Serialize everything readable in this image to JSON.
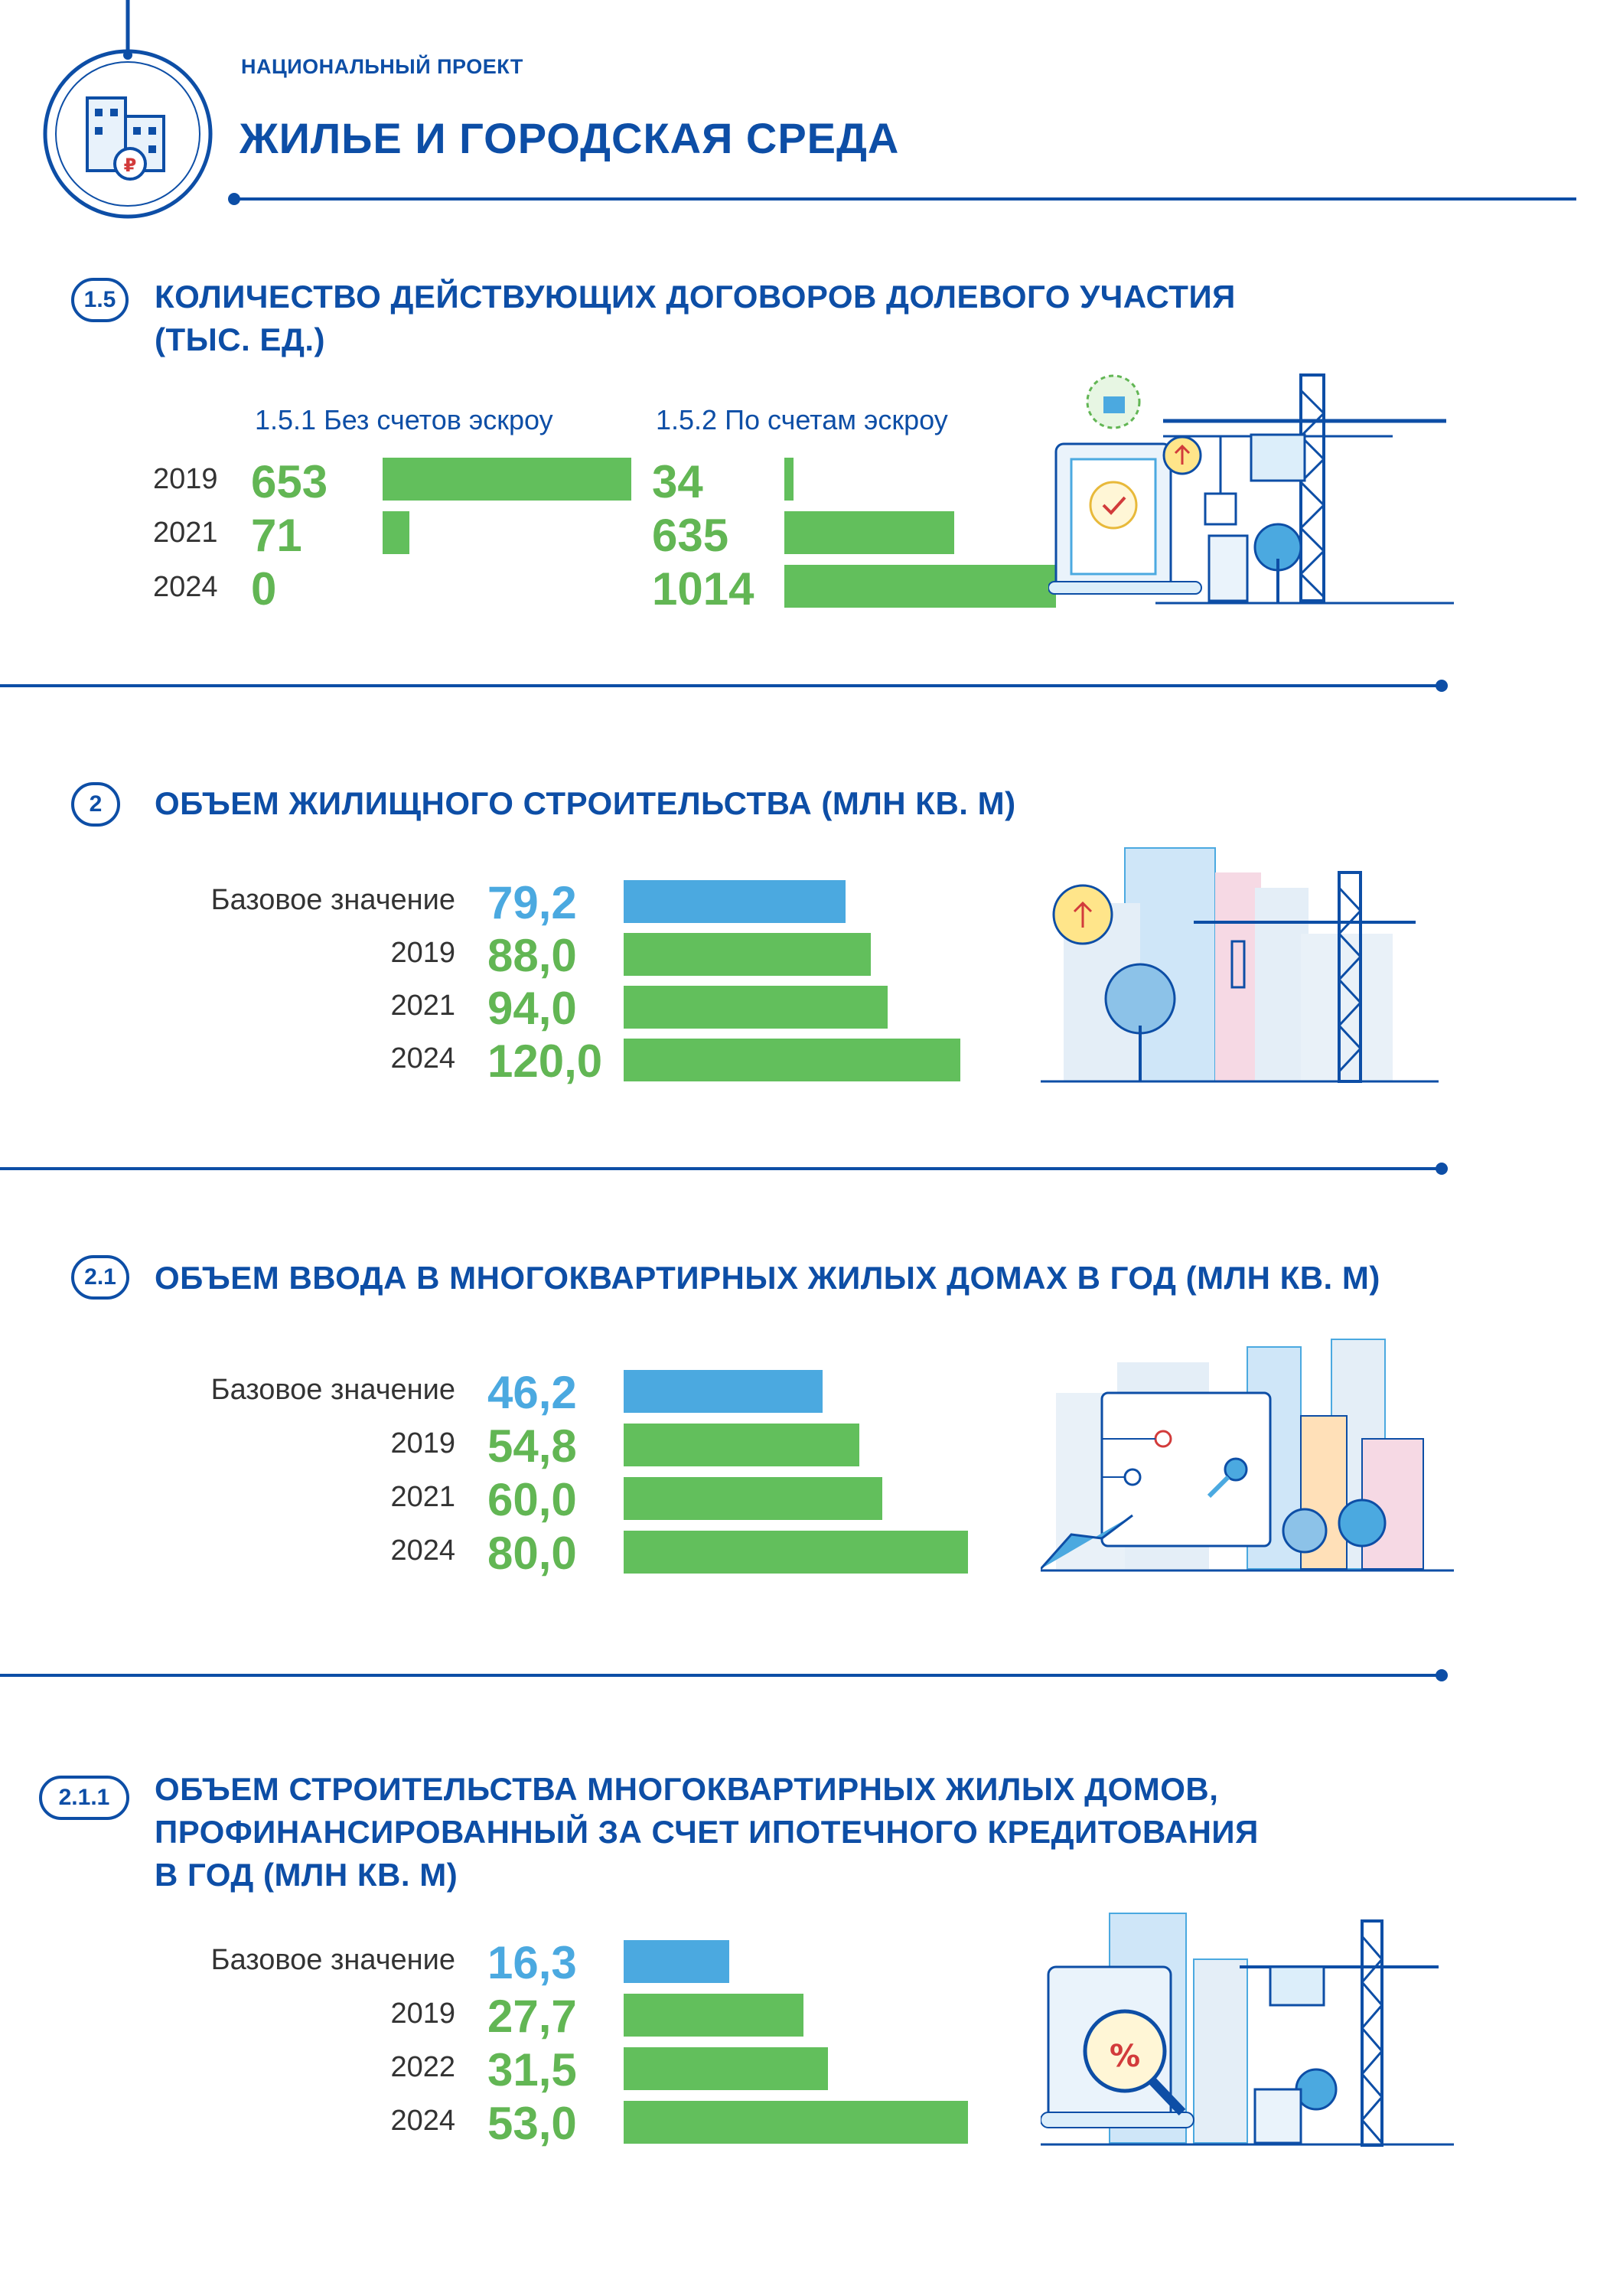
{
  "header": {
    "kicker": "НАЦИОНАЛЬНЫЙ ПРОЕКТ",
    "title": "ЖИЛЬЕ И ГОРОДСКАЯ СРЕДА",
    "icon": "house-ruble-icon"
  },
  "colors": {
    "brand": "#0d4ea6",
    "green_bar": "#62bf5c",
    "blue_bar": "#4ba9e0",
    "green_text": "#62b654"
  },
  "s15": {
    "badge": "1.5",
    "title_line1": "КОЛИЧЕСТВО ДЕЙСТВУЮЩИХ ДОГОВОРОВ ДОЛЕВОГО УЧАСТИЯ",
    "title_line2": "(ТЫС. ЕД.)",
    "col1": "1.5.1 Без счетов эскроу",
    "col2": "1.5.2 По счетам эскроу",
    "years": [
      "2019",
      "2021",
      "2024"
    ],
    "col1_values": [
      "653",
      "71",
      "0"
    ],
    "col2_values": [
      "34",
      "635",
      "1014"
    ]
  },
  "s2": {
    "badge": "2",
    "title": "ОБЪЕМ ЖИЛИЩНОГО СТРОИТЕЛЬСТВА (МЛН КВ. М)",
    "rows": [
      {
        "label": "Базовое значение",
        "value": "79,2"
      },
      {
        "label": "2019",
        "value": "88,0"
      },
      {
        "label": "2021",
        "value": "94,0"
      },
      {
        "label": "2024",
        "value": "120,0"
      }
    ]
  },
  "s21": {
    "badge": "2.1",
    "title": "ОБЪЕМ ВВОДА В МНОГОКВАРТИРНЫХ ЖИЛЫХ ДОМАХ В ГОД (МЛН КВ. М)",
    "rows": [
      {
        "label": "Базовое значение",
        "value": "46,2"
      },
      {
        "label": "2019",
        "value": "54,8"
      },
      {
        "label": "2021",
        "value": "60,0"
      },
      {
        "label": "2024",
        "value": "80,0"
      }
    ]
  },
  "s211": {
    "badge": "2.1.1",
    "title_line1": "ОБЪЕМ СТРОИТЕЛЬСТВА МНОГОКВАРТИРНЫХ ЖИЛЫХ ДОМОВ,",
    "title_line2": "ПРОФИНАНСИРОВАННЫЙ ЗА СЧЕТ ИПОТЕЧНОГО КРЕДИТОВАНИЯ",
    "title_line3": "В ГОД (МЛН КВ. М)",
    "rows": [
      {
        "label": "Базовое значение",
        "value": "16,3"
      },
      {
        "label": "2019",
        "value": "27,7"
      },
      {
        "label": "2022",
        "value": "31,5"
      },
      {
        "label": "2024",
        "value": "53,0"
      }
    ]
  },
  "chart_data": [
    {
      "type": "bar",
      "title": "КОЛИЧЕСТВО ДЕЙСТВУЮЩИХ ДОГОВОРОВ ДОЛЕВОГО УЧАСТИЯ (ТЫС. ЕД.)",
      "categories": [
        "2019",
        "2021",
        "2024"
      ],
      "series": [
        {
          "name": "1.5.1 Без счетов эскроу",
          "values": [
            653,
            71,
            0
          ]
        },
        {
          "name": "1.5.2 По счетам эскроу",
          "values": [
            34,
            635,
            1014
          ]
        }
      ]
    },
    {
      "type": "bar",
      "title": "ОБЪЕМ ЖИЛИЩНОГО СТРОИТЕЛЬСТВА (МЛН КВ. М)",
      "categories": [
        "Базовое значение",
        "2019",
        "2021",
        "2024"
      ],
      "values": [
        79.2,
        88.0,
        94.0,
        120.0
      ]
    },
    {
      "type": "bar",
      "title": "ОБЪЕМ ВВОДА В МНОГОКВАРТИРНЫХ ЖИЛЫХ ДОМАХ В ГОД (МЛН КВ. М)",
      "categories": [
        "Базовое значение",
        "2019",
        "2021",
        "2024"
      ],
      "values": [
        46.2,
        54.8,
        60.0,
        80.0
      ]
    },
    {
      "type": "bar",
      "title": "ОБЪЕМ СТРОИТЕЛЬСТВА МНОГОКВАРТИРНЫХ ЖИЛЫХ ДОМОВ, ПРОФИНАНСИРОВАННЫЙ ЗА СЧЕТ ИПОТЕЧНОГО КРЕДИТОВАНИЯ В ГОД (МЛН КВ. М)",
      "categories": [
        "Базовое значение",
        "2019",
        "2022",
        "2024"
      ],
      "values": [
        16.3,
        27.7,
        31.5,
        53.0
      ]
    }
  ]
}
